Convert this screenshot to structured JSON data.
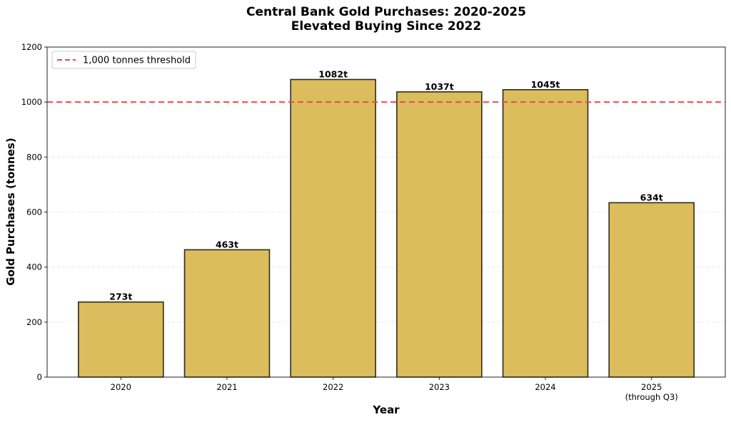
{
  "chart_data": {
    "type": "bar",
    "title": "Central Bank Gold Purchases: 2020-2025",
    "subtitle": "Elevated Buying Since 2022",
    "xlabel": "Year",
    "ylabel": "Gold Purchases (tonnes)",
    "categories": [
      "2020",
      "2021",
      "2022",
      "2023",
      "2024",
      "2025"
    ],
    "category_sublabels": [
      "",
      "",
      "",
      "",
      "",
      "(through Q3)"
    ],
    "values": [
      273,
      463,
      1082,
      1037,
      1045,
      634
    ],
    "data_labels": [
      "273t",
      "463t",
      "1082t",
      "1037t",
      "1045t",
      "634t"
    ],
    "ylim": [
      0,
      1200
    ],
    "yticks": [
      0,
      200,
      400,
      600,
      800,
      1000,
      1200
    ],
    "grid": "y, dashed",
    "bar_color": "#DBBD5E",
    "bar_edge_color": "#2f2a1c",
    "reference_line": {
      "value": 1000,
      "label": "1,000 tonnes threshold",
      "color": "#F04A4A",
      "style": "dashed"
    },
    "legend": {
      "placement": "top-left",
      "entries": [
        "1,000 tonnes threshold"
      ]
    }
  }
}
